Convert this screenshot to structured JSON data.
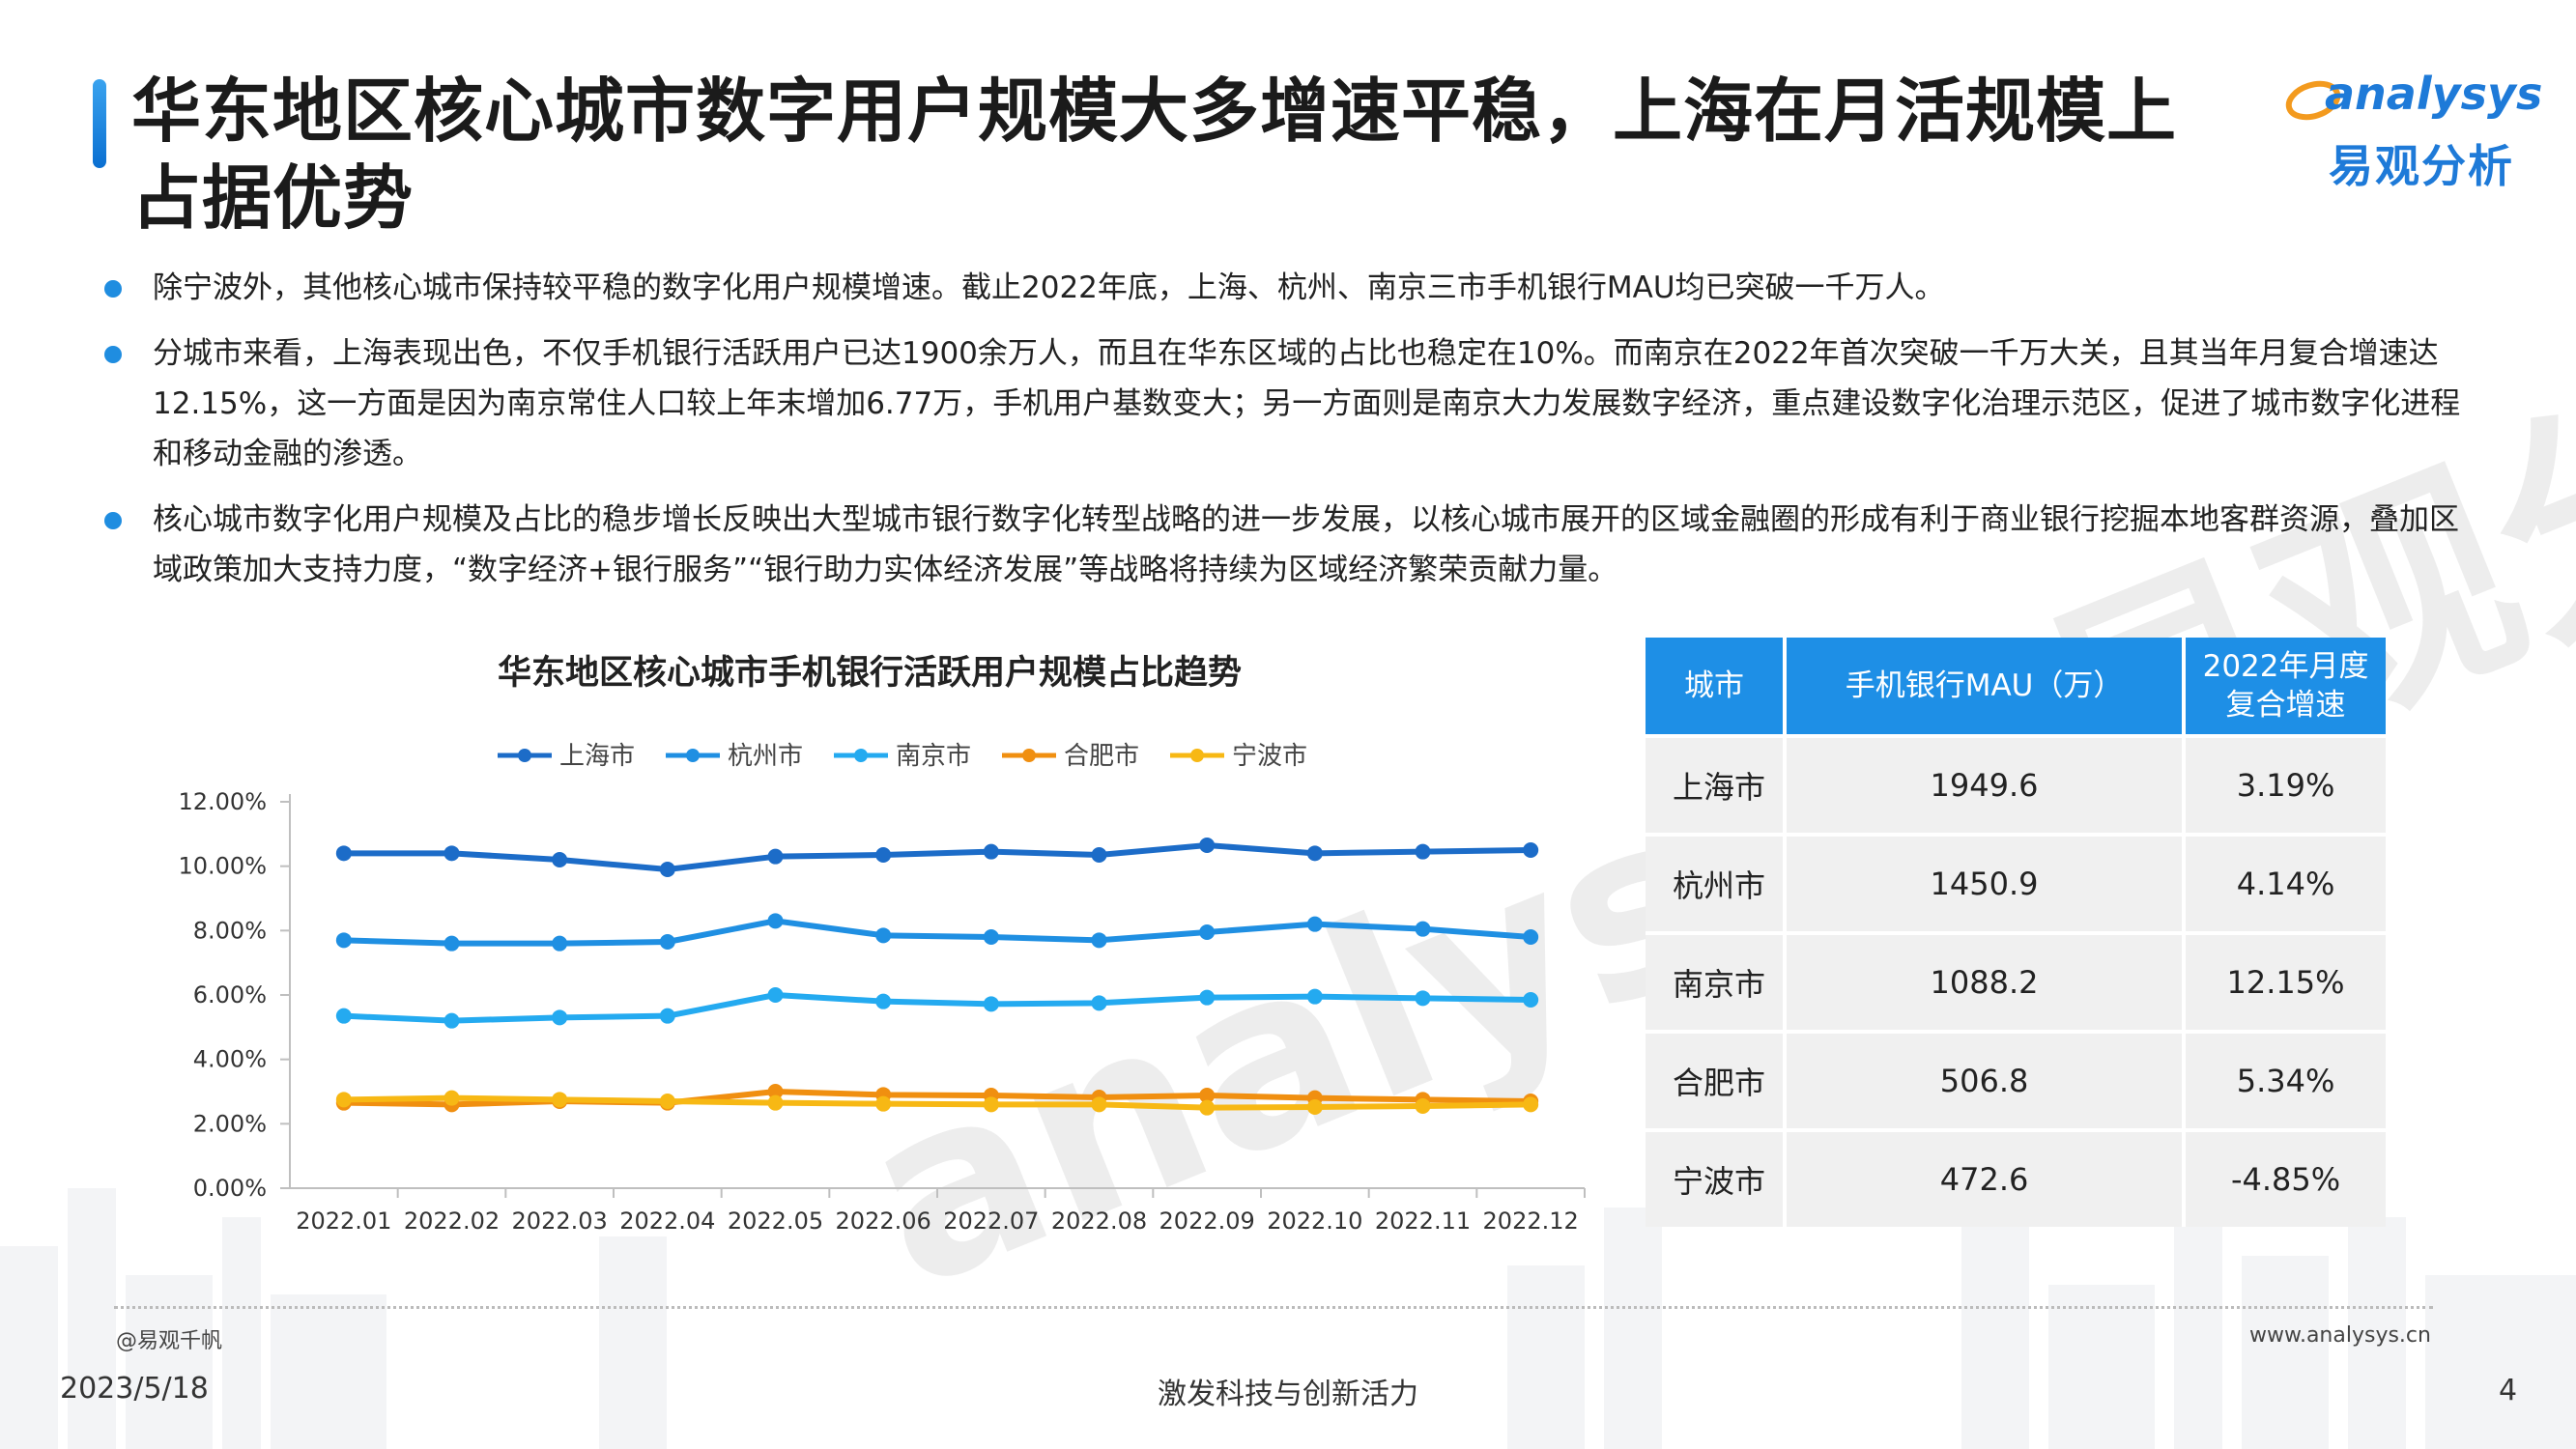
{
  "header": {
    "title": "华东地区核心城市数字用户规模大多增速平稳，上海在月活规模上占据优势",
    "logo_en": "analysys",
    "logo_cn": "易观分析"
  },
  "bullets": [
    "除宁波外，其他核心城市保持较平稳的数字化用户规模增速。截止2022年底，上海、杭州、南京三市手机银行MAU均已突破一千万人。",
    "分城市来看，上海表现出色，不仅手机银行活跃用户已达1900余万人，而且在华东区域的占比也稳定在10%。而南京在2022年首次突破一千万大关，且其当年月复合增速达12.15%，这一方面是因为南京常住人口较上年末增加6.77万，手机用户基数变大；另一方面则是南京大力发展数字经济，重点建设数字化治理示范区，促进了城市数字化进程和移动金融的渗透。",
    "核心城市数字化用户规模及占比的稳步增长反映出大型城市银行数字化转型战略的进一步发展，以核心城市展开的区域金融圈的形成有利于商业银行挖掘本地客群资源，叠加区域政策加大支持力度，“数字经济+银行服务”“银行助力实体经济发展”等战略将持续为区域经济繁荣贡献力量。"
  ],
  "chart_data": {
    "type": "line",
    "title": "华东地区核心城市手机银行活跃用户规模占比趋势",
    "x": [
      "2022.01",
      "2022.02",
      "2022.03",
      "2022.04",
      "2022.05",
      "2022.06",
      "2022.07",
      "2022.08",
      "2022.09",
      "2022.10",
      "2022.11",
      "2022.12"
    ],
    "y_ticks": [
      "0.00%",
      "2.00%",
      "4.00%",
      "6.00%",
      "8.00%",
      "10.00%",
      "12.00%"
    ],
    "ylim": [
      0,
      12
    ],
    "legend_position": "top",
    "series": [
      {
        "name": "上海市",
        "color": "#1c6cc8",
        "values": [
          10.4,
          10.4,
          10.2,
          9.9,
          10.3,
          10.35,
          10.45,
          10.35,
          10.65,
          10.4,
          10.45,
          10.5
        ]
      },
      {
        "name": "杭州市",
        "color": "#1f8fe2",
        "values": [
          7.7,
          7.6,
          7.6,
          7.65,
          8.3,
          7.85,
          7.8,
          7.7,
          7.95,
          8.2,
          8.05,
          7.8
        ]
      },
      {
        "name": "南京市",
        "color": "#24aaf0",
        "values": [
          5.35,
          5.2,
          5.3,
          5.35,
          6.0,
          5.8,
          5.72,
          5.75,
          5.92,
          5.95,
          5.9,
          5.85
        ]
      },
      {
        "name": "合肥市",
        "color": "#f08f10",
        "values": [
          2.65,
          2.6,
          2.7,
          2.65,
          3.0,
          2.9,
          2.88,
          2.82,
          2.88,
          2.8,
          2.75,
          2.7
        ]
      },
      {
        "name": "宁波市",
        "color": "#f7b814",
        "values": [
          2.75,
          2.8,
          2.75,
          2.7,
          2.65,
          2.62,
          2.6,
          2.6,
          2.5,
          2.52,
          2.55,
          2.6
        ]
      }
    ]
  },
  "table": {
    "headers": [
      "城市",
      "手机银行MAU（万）",
      "2022年月度复合增速"
    ],
    "rows": [
      {
        "city": "上海市",
        "mau": "1949.6",
        "growth": "3.19%"
      },
      {
        "city": "杭州市",
        "mau": "1450.9",
        "growth": "4.14%"
      },
      {
        "city": "南京市",
        "mau": "1088.2",
        "growth": "12.15%"
      },
      {
        "city": "合肥市",
        "mau": "506.8",
        "growth": "5.34%"
      },
      {
        "city": "宁波市",
        "mau": "472.6",
        "growth": "-4.85%"
      }
    ]
  },
  "footer": {
    "source": "@易观千帆",
    "site": "www.analysys.cn",
    "date": "2023/5/18",
    "slogan": "激发科技与创新活力",
    "page": "4"
  },
  "colors": {
    "accent": "#1e8fe6",
    "title_bar": "#1a86e0"
  }
}
